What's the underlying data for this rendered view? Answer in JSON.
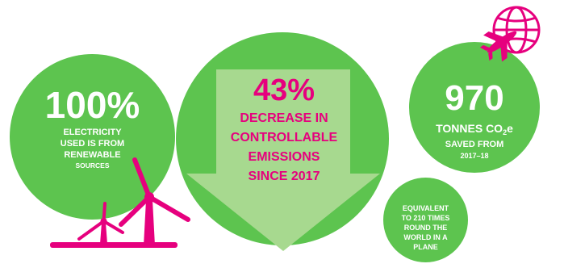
{
  "colors": {
    "green": "#5dc44f",
    "arrow": "#a7d98f",
    "magenta": "#e6007e",
    "white": "#ffffff"
  },
  "icons": {
    "turbines": "wind-turbine-icon",
    "globe_plane": "globe-plane-icon"
  },
  "electricity": {
    "value": "100%",
    "line1": "ELECTRICITY",
    "line2": "USED IS FROM",
    "line3": "RENEWABLE",
    "line4": "SOURCES"
  },
  "emissions": {
    "value": "43%",
    "line1": "DECREASE IN",
    "line2": "CONTROLLABLE",
    "line3": "EMISSIONS",
    "line4": "SINCE 2017"
  },
  "saved": {
    "value": "970",
    "unit_pre": "TONNES CO",
    "unit_sub": "2",
    "unit_post": "e",
    "line1": "SAVED FROM",
    "line2": "2017–18"
  },
  "equivalent": {
    "line1": "EQUIVALENT",
    "line2": "TO 210 TIMES",
    "line3": "ROUND THE",
    "line4": "WORLD IN A",
    "line5": "PLANE"
  }
}
